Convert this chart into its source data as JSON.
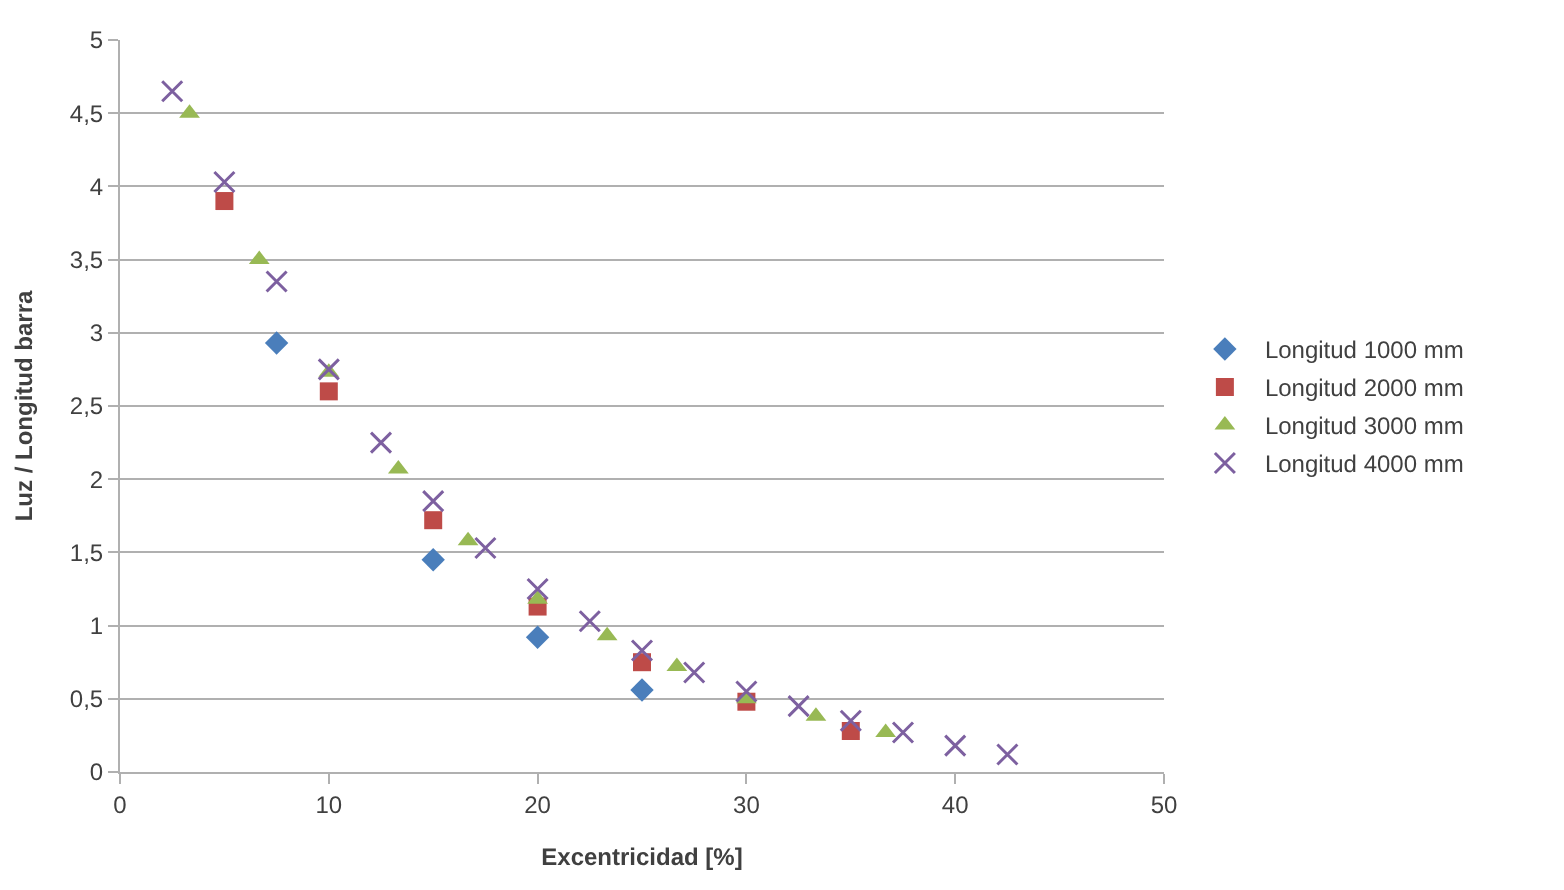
{
  "chart_data": {
    "type": "scatter",
    "xlabel": "Excentricidad [%]",
    "ylabel": "Luz / Longitud barra",
    "xlim": [
      0,
      50
    ],
    "xticks": [
      0,
      10,
      20,
      30,
      40,
      50
    ],
    "ylim": [
      0,
      5
    ],
    "yticks": [
      {
        "value": 0,
        "label": "0"
      },
      {
        "value": 0.5,
        "label": "0,5"
      },
      {
        "value": 1,
        "label": "1"
      },
      {
        "value": 1.5,
        "label": "1,5"
      },
      {
        "value": 2,
        "label": "2"
      },
      {
        "value": 2.5,
        "label": "2,5"
      },
      {
        "value": 3,
        "label": "3"
      },
      {
        "value": 3.5,
        "label": "3,5"
      },
      {
        "value": 4,
        "label": "4"
      },
      {
        "value": 4.5,
        "label": "4,5"
      },
      {
        "value": 5,
        "label": "5"
      }
    ],
    "grid": "y",
    "legend": "right",
    "series": [
      {
        "name": "Longitud 1000 mm",
        "color": "#4a7ebb",
        "marker": "diamond",
        "x": [
          7.5,
          15,
          20,
          25
        ],
        "values": [
          2.93,
          1.45,
          0.92,
          0.56
        ]
      },
      {
        "name": "Longitud 2000 mm",
        "color": "#be4b48",
        "marker": "square",
        "x": [
          5,
          10,
          15,
          20,
          25,
          30,
          35
        ],
        "values": [
          3.9,
          2.6,
          1.72,
          1.13,
          0.75,
          0.48,
          0.28
        ]
      },
      {
        "name": "Longitud 3000 mm",
        "color": "#98b954",
        "marker": "triangle",
        "x": [
          3.33,
          6.67,
          10,
          13.33,
          16.67,
          20,
          23.33,
          26.67,
          30,
          33.33,
          36.67
        ],
        "values": [
          4.5,
          3.5,
          2.73,
          2.07,
          1.58,
          1.18,
          0.93,
          0.72,
          0.5,
          0.38,
          0.27
        ]
      },
      {
        "name": "Longitud 4000 mm",
        "color": "#7d60a0",
        "marker": "cross",
        "x": [
          2.5,
          5,
          7.5,
          10,
          12.5,
          15,
          17.5,
          20,
          22.5,
          25,
          27.5,
          30,
          32.5,
          35,
          37.5,
          40,
          42.5
        ],
        "values": [
          4.65,
          4.03,
          3.35,
          2.75,
          2.25,
          1.85,
          1.53,
          1.25,
          1.03,
          0.83,
          0.68,
          0.55,
          0.45,
          0.35,
          0.27,
          0.18,
          0.12
        ]
      }
    ]
  }
}
